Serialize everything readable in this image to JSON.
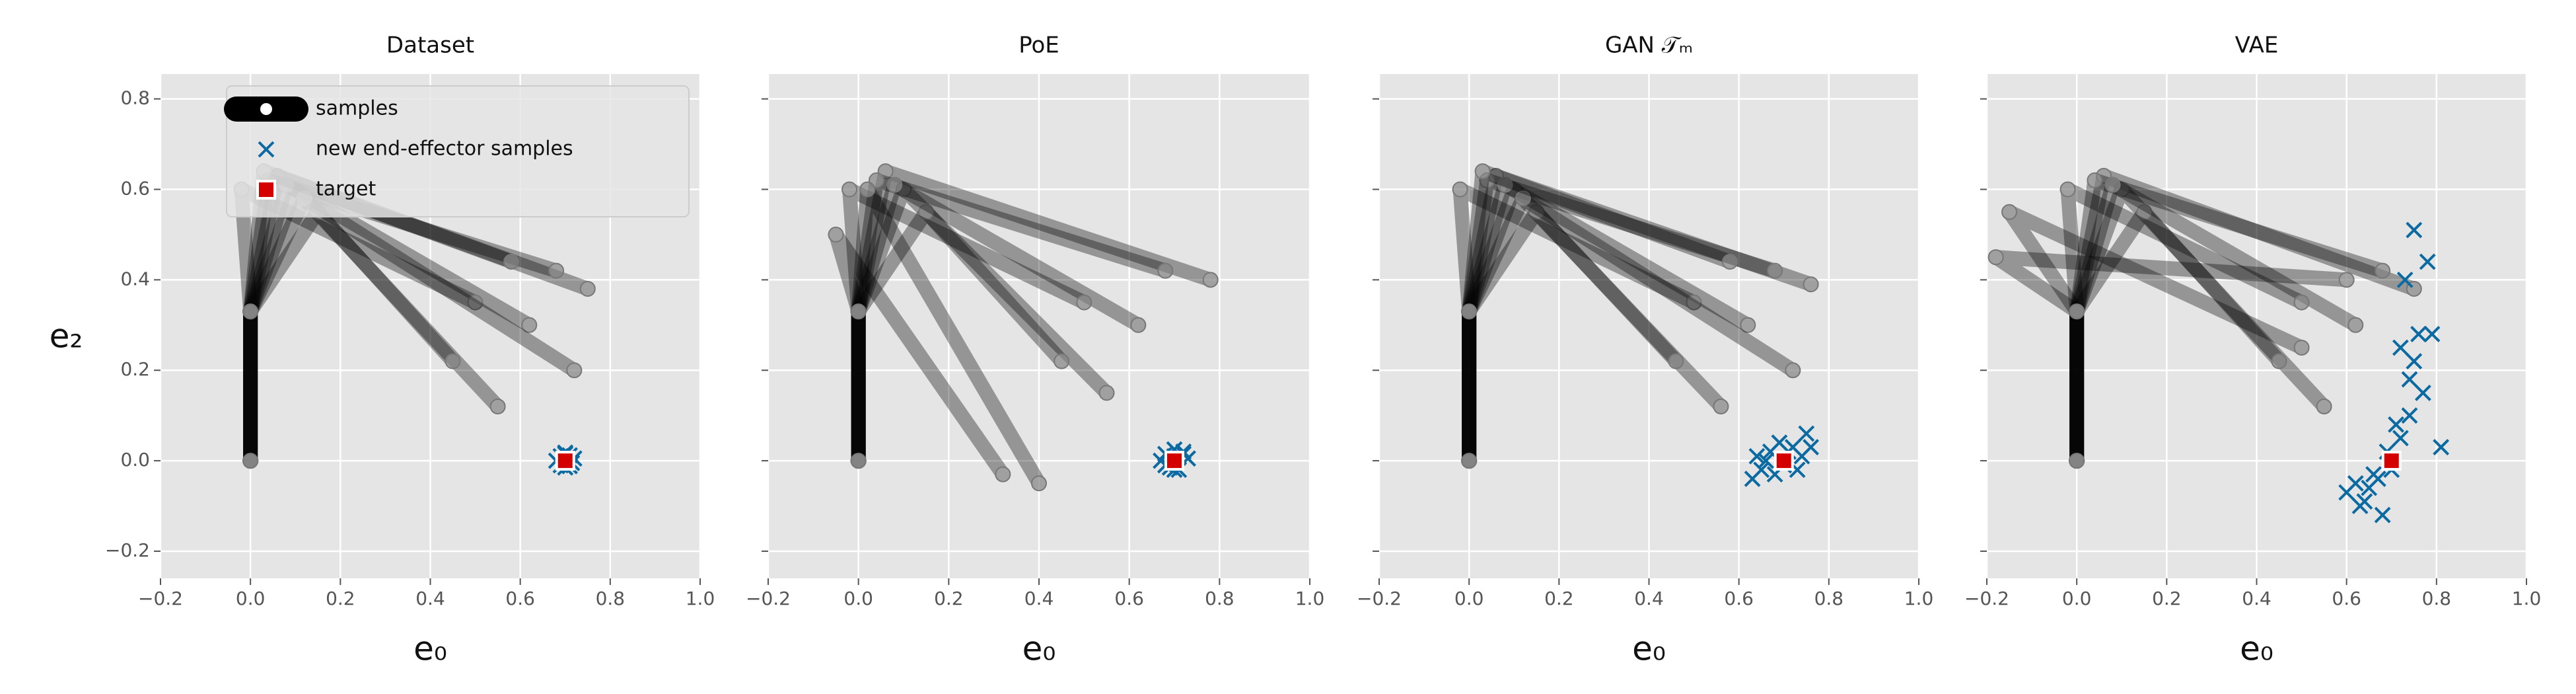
{
  "chart_data": [
    {
      "type": "scatter",
      "title": "Dataset",
      "xlabel": "e₀",
      "ylabel": "e₂",
      "xlim": [
        -0.2,
        1.0
      ],
      "ylim": [
        -0.26,
        0.855
      ],
      "xticks": [
        {
          "value": -0.2,
          "label": "−0.2"
        },
        {
          "value": 0.0,
          "label": "0.0"
        },
        0.2,
        0.4,
        0.6,
        0.8,
        {
          "value": 1.0,
          "label": "1.0"
        }
      ],
      "yticks": [
        {
          "value": -0.2,
          "label": "−0.2"
        },
        {
          "value": 0.0,
          "label": "0.0"
        },
        0.2,
        0.4,
        0.6,
        0.8
      ],
      "show_yticklabels": true,
      "grid": true,
      "legend": "upper left",
      "series": [
        {
          "name": "samples",
          "marker": "arm",
          "color": "#000000",
          "x": [
            0,
            0,
            0.06,
            0.75,
            null,
            0,
            0,
            0.1,
            0.55,
            null,
            0,
            0,
            0.04,
            0.68,
            null,
            0,
            0,
            0.15,
            0.45,
            null,
            0,
            0,
            0.08,
            0.62,
            null,
            0,
            0,
            -0.02,
            0.5,
            null,
            0,
            0,
            0.12,
            0.72,
            null,
            0,
            0,
            0.03,
            0.58
          ],
          "y": [
            0,
            0.33,
            0.63,
            0.38,
            null,
            0,
            0.33,
            0.6,
            0.12,
            null,
            0,
            0.33,
            0.62,
            0.42,
            null,
            0,
            0.33,
            0.55,
            0.22,
            null,
            0,
            0.33,
            0.61,
            0.3,
            null,
            0,
            0.33,
            0.6,
            0.35,
            null,
            0,
            0.33,
            0.58,
            0.2,
            null,
            0,
            0.33,
            0.64,
            0.44
          ]
        },
        {
          "name": "new end-effector samples",
          "marker": "x",
          "color": "#0a6aa1",
          "x": [
            0.69,
            0.71,
            0.7,
            0.68,
            0.72,
            0.7,
            0.69,
            0.71,
            0.7,
            0.715
          ],
          "y": [
            0.01,
            0.012,
            -0.015,
            0,
            0.005,
            0.018,
            -0.01,
            -0.012,
            0.015,
            -0.005
          ]
        },
        {
          "name": "target",
          "marker": "square",
          "color": "#d40000",
          "x": [
            0.7
          ],
          "y": [
            0
          ]
        }
      ]
    },
    {
      "type": "scatter",
      "title": "PoE",
      "xlabel": "e₀",
      "xlim": [
        -0.2,
        1.0
      ],
      "ylim": [
        -0.26,
        0.855
      ],
      "xticks": [
        {
          "value": -0.2,
          "label": "−0.2"
        },
        {
          "value": 0.0,
          "label": "0.0"
        },
        0.2,
        0.4,
        0.6,
        0.8,
        {
          "value": 1.0,
          "label": "1.0"
        }
      ],
      "yticks": [
        -0.2,
        0,
        0.2,
        0.4,
        0.6,
        0.8
      ],
      "show_yticklabels": false,
      "grid": true,
      "series": [
        {
          "marker": "arm",
          "color": "#000000",
          "x": [
            0,
            0,
            0.06,
            0.78,
            null,
            0,
            0,
            0.1,
            0.55,
            null,
            0,
            0,
            0.04,
            0.68,
            null,
            0,
            0,
            0.15,
            0.45,
            null,
            0,
            0,
            0.08,
            0.62,
            null,
            0,
            0,
            -0.02,
            0.5,
            null,
            0,
            0,
            0.02,
            0.4,
            null,
            0,
            0,
            -0.05,
            0.32
          ],
          "y": [
            0,
            0.33,
            0.64,
            0.4,
            null,
            0,
            0.33,
            0.6,
            0.15,
            null,
            0,
            0.33,
            0.62,
            0.42,
            null,
            0,
            0.33,
            0.55,
            0.22,
            null,
            0,
            0.33,
            0.61,
            0.3,
            null,
            0,
            0.33,
            0.6,
            0.35,
            null,
            0,
            0.33,
            0.6,
            -0.05,
            null,
            0,
            0.33,
            0.5,
            -0.03
          ]
        },
        {
          "marker": "x",
          "color": "#0a6aa1",
          "x": [
            0.68,
            0.72,
            0.7,
            0.67,
            0.73,
            0.7,
            0.69,
            0.71,
            0.72,
            0.68,
            0.7
          ],
          "y": [
            0.015,
            0.02,
            -0.02,
            0,
            0.005,
            0.025,
            -0.015,
            -0.02,
            0.015,
            -0.01,
            0.01
          ]
        },
        {
          "marker": "square",
          "color": "#d40000",
          "x": [
            0.7
          ],
          "y": [
            0
          ]
        }
      ]
    },
    {
      "type": "scatter",
      "title": "GAN 𝒯ₘ",
      "xlabel": "e₀",
      "xlim": [
        -0.2,
        1.0
      ],
      "ylim": [
        -0.26,
        0.855
      ],
      "xticks": [
        {
          "value": -0.2,
          "label": "−0.2"
        },
        {
          "value": 0.0,
          "label": "0.0"
        },
        0.2,
        0.4,
        0.6,
        0.8,
        {
          "value": 1.0,
          "label": "1.0"
        }
      ],
      "yticks": [
        -0.2,
        0,
        0.2,
        0.4,
        0.6,
        0.8
      ],
      "show_yticklabels": false,
      "grid": true,
      "series": [
        {
          "marker": "arm",
          "color": "#000000",
          "x": [
            0,
            0,
            0.06,
            0.76,
            null,
            0,
            0,
            0.1,
            0.56,
            null,
            0,
            0,
            0.04,
            0.68,
            null,
            0,
            0,
            0.15,
            0.46,
            null,
            0,
            0,
            0.08,
            0.62,
            null,
            0,
            0,
            -0.02,
            0.5,
            null,
            0,
            0,
            0.12,
            0.72,
            null,
            0,
            0,
            0.03,
            0.58
          ],
          "y": [
            0,
            0.33,
            0.63,
            0.39,
            null,
            0,
            0.33,
            0.6,
            0.12,
            null,
            0,
            0.33,
            0.62,
            0.42,
            null,
            0,
            0.33,
            0.55,
            0.22,
            null,
            0,
            0.33,
            0.61,
            0.3,
            null,
            0,
            0.33,
            0.6,
            0.35,
            null,
            0,
            0.33,
            0.58,
            0.2,
            null,
            0,
            0.33,
            0.64,
            0.44
          ]
        },
        {
          "marker": "x",
          "color": "#0a6aa1",
          "x": [
            0.63,
            0.65,
            0.67,
            0.68,
            0.72,
            0.74,
            0.75,
            0.66,
            0.7,
            0.73,
            0.64,
            0.69,
            0.71,
            0.76
          ],
          "y": [
            -0.04,
            -0.02,
            0.02,
            -0.03,
            0.03,
            0.01,
            0.06,
            0.0,
            -0.01,
            -0.02,
            0.01,
            0.04,
            0.02,
            0.03
          ]
        },
        {
          "marker": "square",
          "color": "#d40000",
          "x": [
            0.7
          ],
          "y": [
            0
          ]
        }
      ]
    },
    {
      "type": "scatter",
      "title": "VAE",
      "xlabel": "e₀",
      "xlim": [
        -0.2,
        1.0
      ],
      "ylim": [
        -0.26,
        0.855
      ],
      "xticks": [
        {
          "value": -0.2,
          "label": "−0.2"
        },
        {
          "value": 0.0,
          "label": "0.0"
        },
        0.2,
        0.4,
        0.6,
        0.8,
        {
          "value": 1.0,
          "label": "1.0"
        }
      ],
      "yticks": [
        -0.2,
        0,
        0.2,
        0.4,
        0.6,
        0.8
      ],
      "show_yticklabels": false,
      "grid": true,
      "series": [
        {
          "marker": "arm",
          "color": "#000000",
          "x": [
            0,
            0,
            0.06,
            0.75,
            null,
            0,
            0,
            0.1,
            0.55,
            null,
            0,
            0,
            0.04,
            0.68,
            null,
            0,
            0,
            0.15,
            0.45,
            null,
            0,
            0,
            0.08,
            0.62,
            null,
            0,
            0,
            -0.02,
            0.5,
            null,
            0,
            0,
            -0.15,
            0.5,
            null,
            0,
            0,
            -0.18,
            0.6
          ],
          "y": [
            0,
            0.33,
            0.63,
            0.38,
            null,
            0,
            0.33,
            0.6,
            0.12,
            null,
            0,
            0.33,
            0.62,
            0.42,
            null,
            0,
            0.33,
            0.55,
            0.22,
            null,
            0,
            0.33,
            0.61,
            0.3,
            null,
            0,
            0.33,
            0.6,
            0.35,
            null,
            0,
            0.33,
            0.55,
            0.25,
            null,
            0,
            0.33,
            0.45,
            0.4
          ]
        },
        {
          "marker": "x",
          "color": "#0a6aa1",
          "x": [
            0.6,
            0.62,
            0.64,
            0.66,
            0.68,
            0.7,
            0.72,
            0.74,
            0.75,
            0.73,
            0.76,
            0.78,
            0.81,
            0.74,
            0.72,
            0.69,
            0.65,
            0.77,
            0.79,
            0.75,
            0.71,
            0.67,
            0.63
          ],
          "y": [
            -0.07,
            -0.05,
            -0.09,
            -0.03,
            -0.12,
            -0.02,
            0.05,
            0.1,
            0.51,
            0.4,
            0.28,
            0.44,
            0.03,
            0.18,
            0.25,
            0.02,
            -0.06,
            0.15,
            0.28,
            0.22,
            0.08,
            -0.04,
            -0.1
          ]
        },
        {
          "marker": "square",
          "color": "#d40000",
          "x": [
            0.7
          ],
          "y": [
            0
          ]
        }
      ]
    }
  ]
}
